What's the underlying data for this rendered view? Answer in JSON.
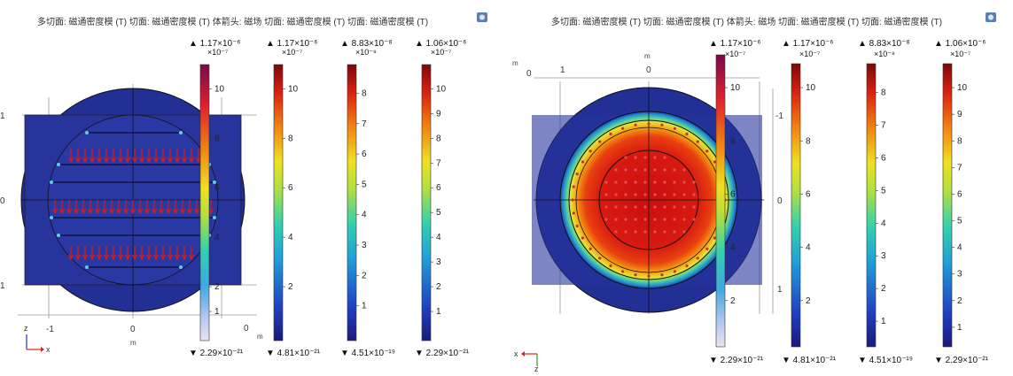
{
  "plot_title": "多切面: 磁通密度模 (T)  切面: 磁通密度模 (T)  体箭头: 磁场  切面: 磁通密度模 (T)  切面: 磁通密度模 (T)",
  "plot_title_right": "多切面: 磁通密度模 (T)  切面: 磁通密度模 (T)  体箭头: 磁场  切面: 磁通密度模 (T)  切面: 磁通密度模 (T)",
  "axis_unit": "m",
  "colors": {
    "background_field": "#1f2a8c",
    "frame_field": "#2b3aa6",
    "arrow": "#d81b1b",
    "grid": "#9a9a9a"
  },
  "icons": [
    "camera-icon",
    "axis-triad-icon"
  ],
  "chart_data": [
    {
      "type": "heatmap",
      "title": "多切面: 磁通密度模 (T)  切面: 磁通密度模 (T)  体箭头: 磁场  切面: 磁通密度模 (T)  切面: 磁通密度模 (T)",
      "xlabel": "m",
      "ylabel": "m",
      "x_ticks": [
        "-1",
        "0",
        "1"
      ],
      "y_ticks": [
        "1",
        "0",
        "1"
      ],
      "triad": {
        "x": "x",
        "y": "z"
      },
      "arrows": "体箭头: 磁场",
      "colorbars": [
        {
          "max_label": "▲ 1.17×10⁻⁶",
          "exponent": "×10⁻⁷",
          "ticks": [
            "1",
            "2",
            "4",
            "6",
            "8",
            "10"
          ],
          "min_label": "▼ 2.29×10⁻²¹",
          "style": "rainbow-light"
        },
        {
          "max_label": "▲ 1.17×10⁻⁶",
          "exponent": "×10⁻⁷",
          "ticks": [
            "2",
            "4",
            "6",
            "8",
            "10"
          ],
          "min_label": "▼ 4.81×10⁻²¹",
          "style": "rainbow"
        },
        {
          "max_label": "▲ 8.83×10⁻⁸",
          "exponent": "×10⁻⁸",
          "ticks": [
            "1",
            "2",
            "3",
            "4",
            "5",
            "6",
            "7",
            "8"
          ],
          "min_label": "▼ 4.51×10⁻¹⁹",
          "style": "rainbow"
        },
        {
          "max_label": "▲ 1.06×10⁻⁶",
          "exponent": "×10⁻⁷",
          "ticks": [
            "1",
            "2",
            "3",
            "4",
            "5",
            "6",
            "7",
            "8",
            "9",
            "10"
          ],
          "min_label": "▼ 2.29×10⁻²¹",
          "style": "rainbow"
        }
      ]
    },
    {
      "type": "heatmap",
      "title": "多切面: 磁通密度模 (T)  切面: 磁通密度模 (T)  体箭头: 磁场  切面: 磁通密度模 (T)  切面: 磁通密度模 (T)",
      "xlabel": "m",
      "ylabel": "m",
      "x_ticks": [
        "1",
        "0"
      ],
      "y_ticks": [
        "-1",
        "0",
        "1"
      ],
      "triad": {
        "x": "x",
        "y": "z"
      },
      "colorbars": [
        {
          "max_label": "▲ 1.17×10⁻⁶",
          "exponent": "×10⁻⁷",
          "ticks": [
            "2",
            "4",
            "6",
            "8",
            "10"
          ],
          "min_label": "▼ 2.29×10⁻²¹",
          "style": "rainbow-light"
        },
        {
          "max_label": "▲ 1.17×10⁻⁶",
          "exponent": "×10⁻⁷",
          "ticks": [
            "2",
            "4",
            "6",
            "8",
            "10"
          ],
          "min_label": "▼ 4.81×10⁻²¹",
          "style": "rainbow"
        },
        {
          "max_label": "▲ 8.83×10⁻⁸",
          "exponent": "×10⁻⁸",
          "ticks": [
            "1",
            "2",
            "3",
            "4",
            "5",
            "6",
            "7",
            "8"
          ],
          "min_label": "▼ 4.51×10⁻¹⁹",
          "style": "rainbow"
        },
        {
          "max_label": "▲ 1.06×10⁻⁶",
          "exponent": "×10⁻⁷",
          "ticks": [
            "1",
            "2",
            "3",
            "4",
            "5",
            "6",
            "7",
            "8",
            "9",
            "10"
          ],
          "min_label": "▼ 2.29×10⁻²¹",
          "style": "rainbow"
        }
      ]
    }
  ]
}
